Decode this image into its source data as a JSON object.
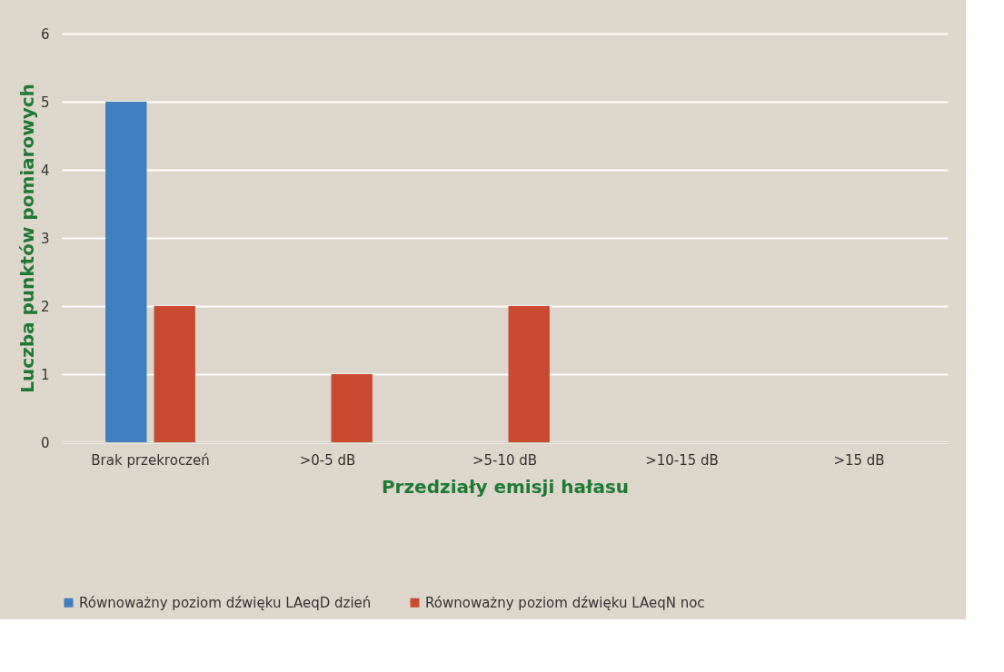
{
  "chart_data": {
    "type": "bar",
    "xlabel": "Przedziały emisji hałasu",
    "ylabel": "Luczba punktów pomiarowych",
    "categories": [
      "Brak przekroczeń",
      ">0-5 dB",
      ">5-10 dB",
      ">10-15 dB",
      ">15 dB"
    ],
    "series": [
      {
        "name": "Równoważny poziom dźwięku LAeqD dzień",
        "color": "#3f7fbf",
        "values": [
          5,
          0,
          0,
          0,
          0
        ]
      },
      {
        "name": "Równoważny poziom dźwięku LAeqN noc",
        "color": "#c94a30",
        "values": [
          2,
          1,
          2,
          0,
          0
        ]
      }
    ],
    "ylim": [
      0,
      6
    ],
    "yticks": [
      0,
      1,
      2,
      3,
      4,
      5,
      6
    ],
    "grid": "y",
    "legend": "bottom"
  }
}
